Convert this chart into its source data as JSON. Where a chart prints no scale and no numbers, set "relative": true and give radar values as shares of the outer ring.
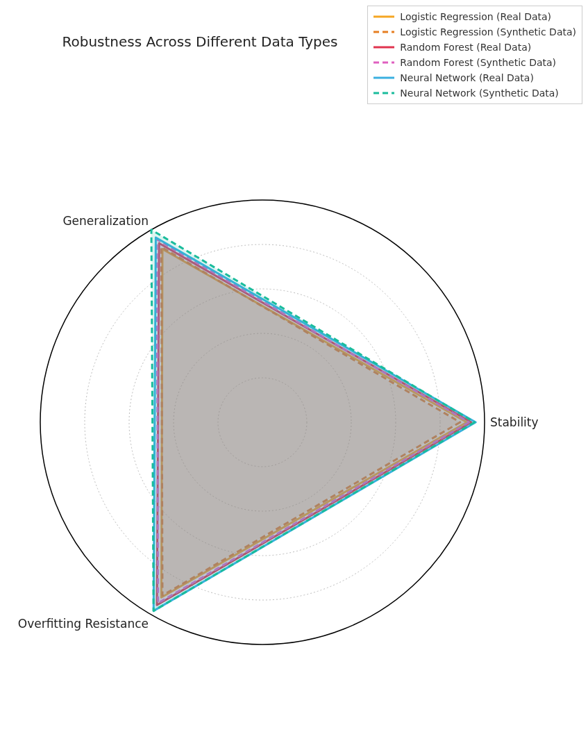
{
  "chart_data": {
    "type": "radar",
    "title": "Robustness Across Different Data Types",
    "relative": true,
    "grid": true,
    "legend": "top right",
    "categories": [
      "Stability",
      "Overfitting Resistance",
      "Generalization"
    ],
    "series": [
      {
        "name": "Logistic Regression (Real Data)",
        "color": "#f5a623",
        "line_style": "solid",
        "values": [
          0.92,
          0.91,
          0.9
        ]
      },
      {
        "name": "Logistic Regression (Synthetic Data)",
        "color": "#e67e22",
        "line_style": "dashed",
        "values": [
          0.89,
          0.9,
          0.91
        ]
      },
      {
        "name": "Random Forest (Real Data)",
        "color": "#e0344f",
        "line_style": "solid",
        "values": [
          0.94,
          0.95,
          0.93
        ]
      },
      {
        "name": "Random Forest (Synthetic Data)",
        "color": "#e060c0",
        "line_style": "dashed",
        "values": [
          0.93,
          0.94,
          0.95
        ]
      },
      {
        "name": "Neural Network (Real Data)",
        "color": "#3ab0e0",
        "line_style": "solid",
        "values": [
          0.96,
          0.98,
          0.96
        ]
      },
      {
        "name": "Neural Network (Synthetic Data)",
        "color": "#1abc9c",
        "line_style": "dashed",
        "values": [
          0.955,
          0.98,
          1.0
        ]
      }
    ]
  }
}
